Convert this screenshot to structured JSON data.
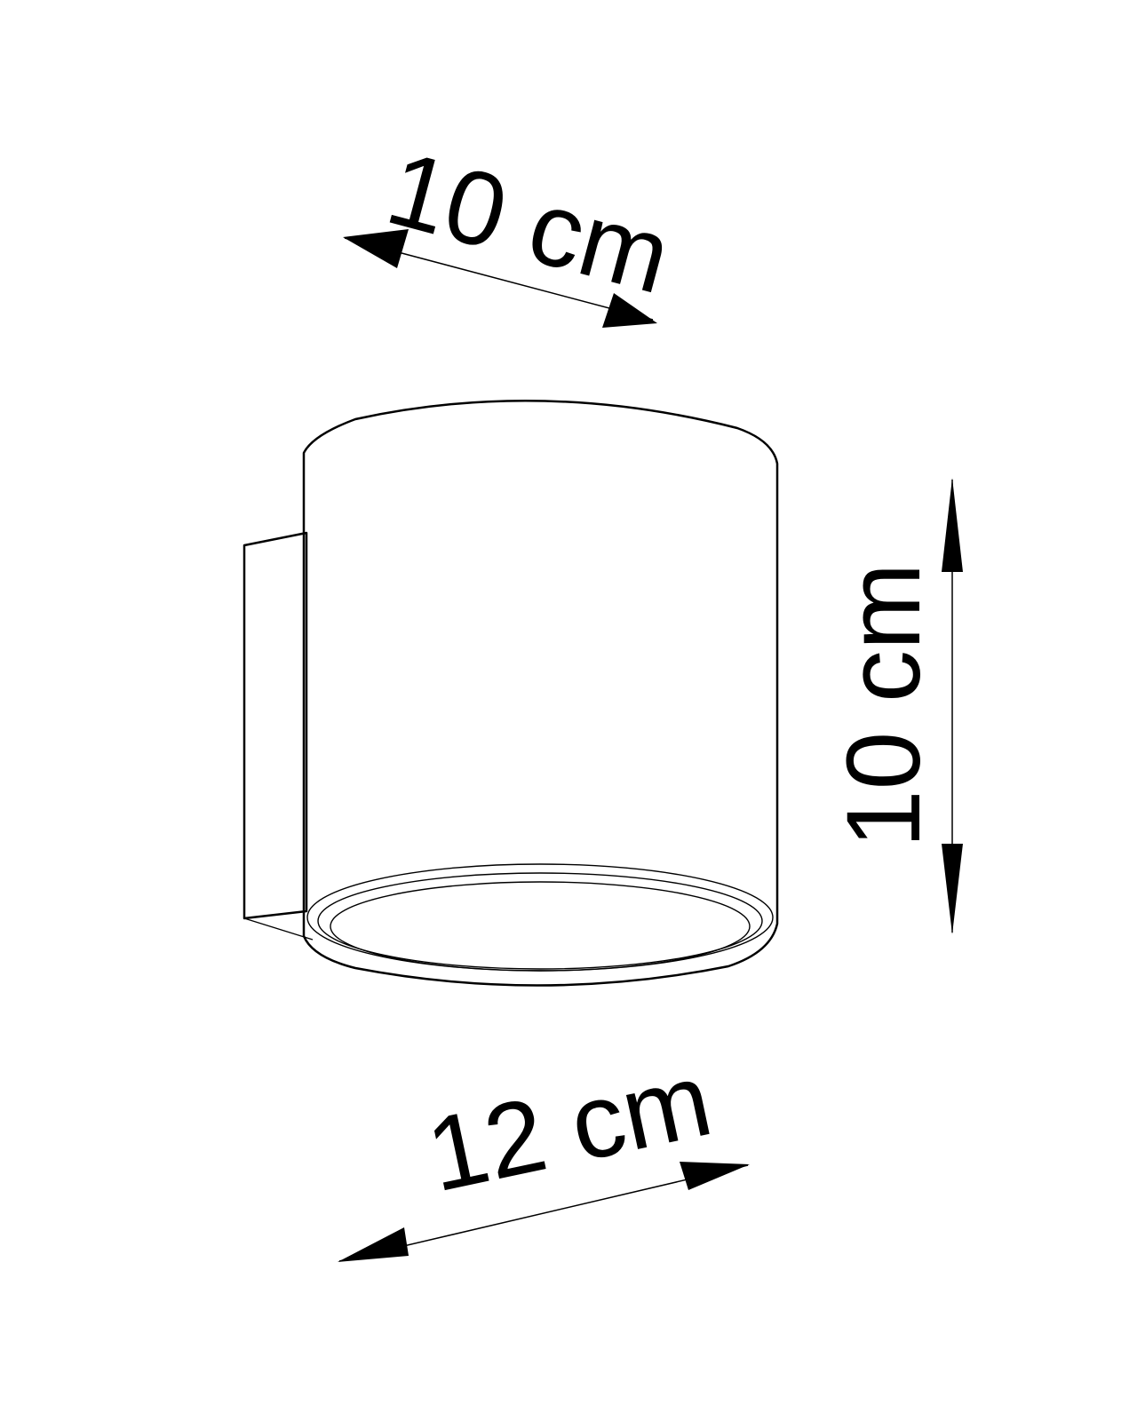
{
  "dimensions": {
    "depth": "10 cm",
    "height": "10 cm",
    "width": "12 cm"
  },
  "colors": {
    "line": "#000000",
    "background": "#ffffff"
  }
}
